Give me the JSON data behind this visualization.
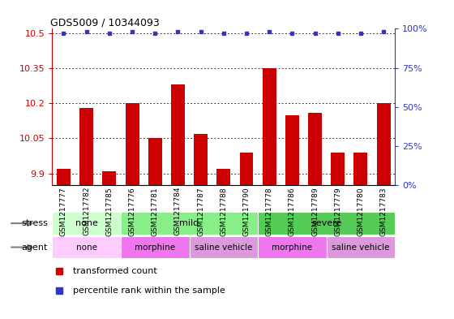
{
  "title": "GDS5009 / 10344093",
  "samples": [
    "GSM1217777",
    "GSM1217782",
    "GSM1217785",
    "GSM1217776",
    "GSM1217781",
    "GSM1217784",
    "GSM1217787",
    "GSM1217788",
    "GSM1217790",
    "GSM1217778",
    "GSM1217786",
    "GSM1217789",
    "GSM1217779",
    "GSM1217780",
    "GSM1217783"
  ],
  "transformed_counts": [
    9.92,
    10.18,
    9.91,
    10.2,
    10.05,
    10.28,
    10.07,
    9.92,
    9.99,
    10.35,
    10.15,
    10.16,
    9.99,
    9.99,
    10.2
  ],
  "percentile_ranks": [
    97,
    98,
    97,
    98,
    97,
    98,
    98,
    97,
    97,
    98,
    97,
    97,
    97,
    97,
    98
  ],
  "ylim_left": [
    9.85,
    10.52
  ],
  "ylim_right": [
    0,
    100
  ],
  "yticks_left": [
    9.9,
    10.05,
    10.2,
    10.35,
    10.5
  ],
  "yticks_right": [
    0,
    25,
    50,
    75,
    100
  ],
  "bar_color": "#cc0000",
  "dot_color": "#3333cc",
  "stress_groups": [
    {
      "label": "none",
      "start": 0,
      "end": 3,
      "color": "#ccffcc"
    },
    {
      "label": "mild",
      "start": 3,
      "end": 9,
      "color": "#88ee88"
    },
    {
      "label": "severe",
      "start": 9,
      "end": 15,
      "color": "#55cc55"
    }
  ],
  "agent_groups": [
    {
      "label": "none",
      "start": 0,
      "end": 3,
      "color": "#ffccff"
    },
    {
      "label": "morphine",
      "start": 3,
      "end": 6,
      "color": "#ee77ee"
    },
    {
      "label": "saline vehicle",
      "start": 6,
      "end": 9,
      "color": "#dd99dd"
    },
    {
      "label": "morphine",
      "start": 9,
      "end": 12,
      "color": "#ee77ee"
    },
    {
      "label": "saline vehicle",
      "start": 12,
      "end": 15,
      "color": "#dd99dd"
    }
  ],
  "plot_bg_color": "#ffffff",
  "grid_color": "#000000",
  "tick_label_color_left": "#cc0000",
  "tick_label_color_right": "#3333cc",
  "bar_width": 0.6
}
